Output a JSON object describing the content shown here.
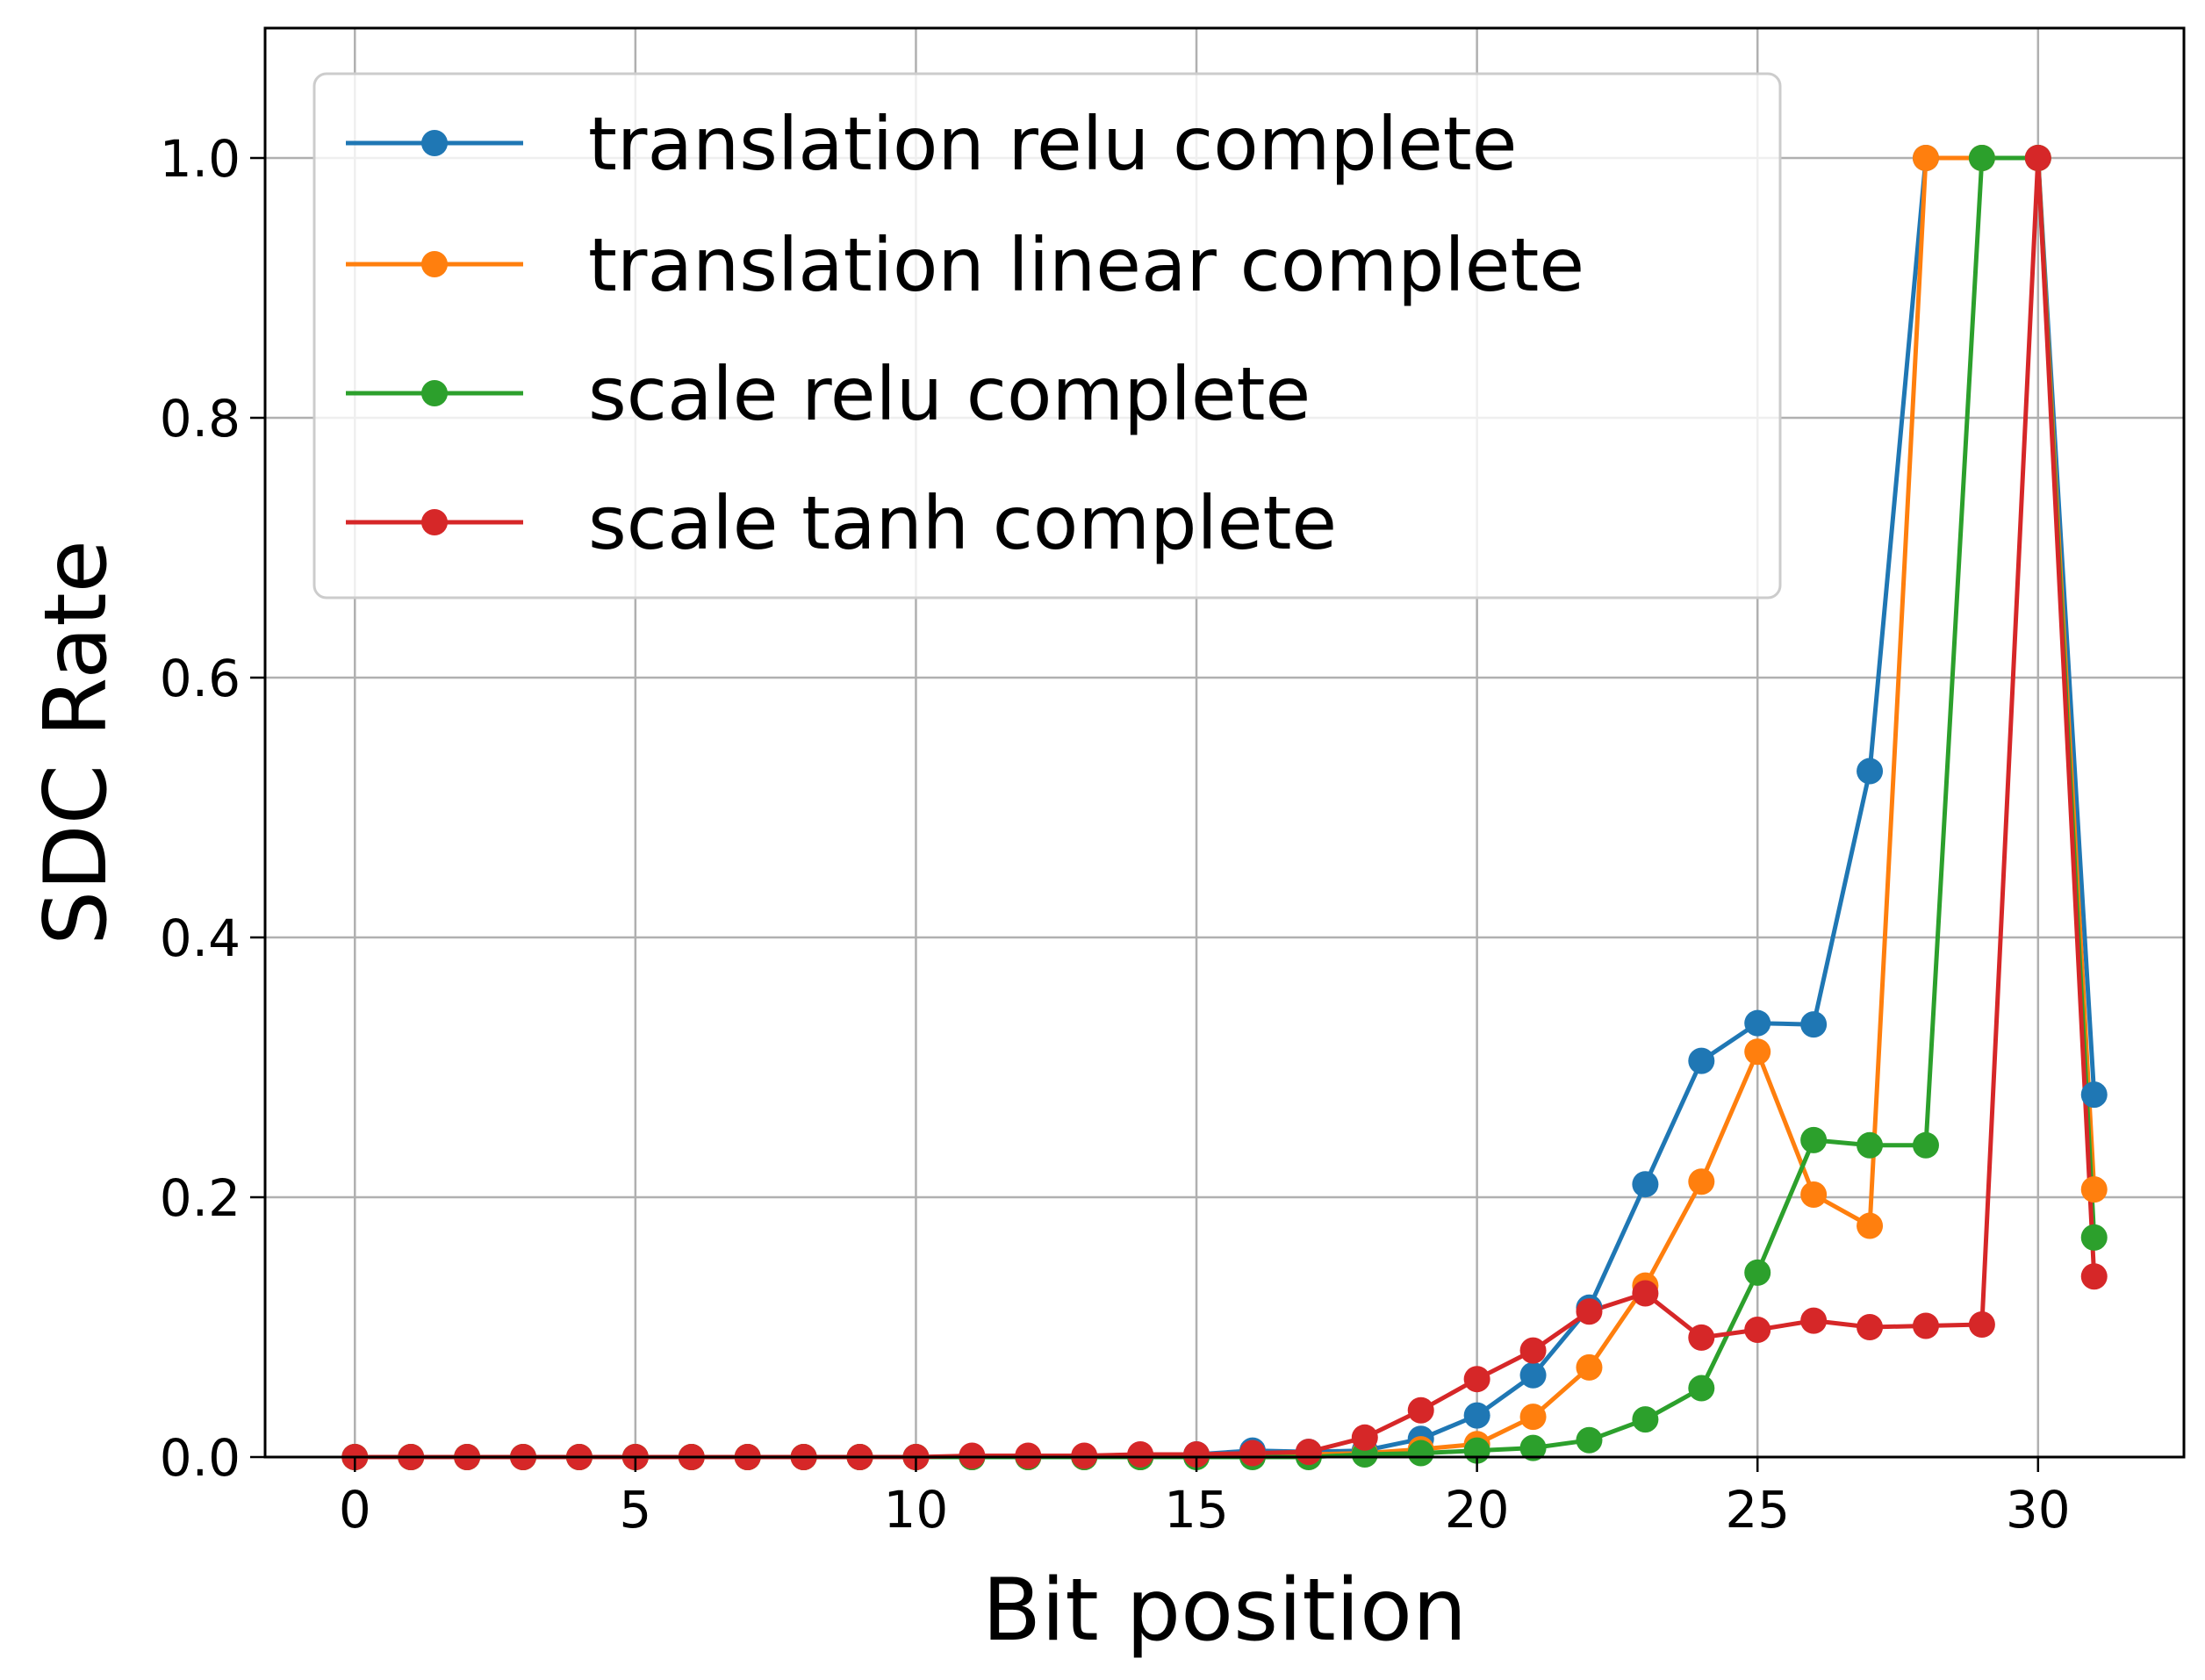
{
  "chart_data": {
    "type": "line",
    "title": "",
    "xlabel": "Bit position",
    "ylabel": "SDC Rate",
    "xlim": [
      -1.6,
      32.6
    ],
    "ylim": [
      0,
      1.1
    ],
    "xticks": [
      0,
      5,
      10,
      15,
      20,
      25,
      30
    ],
    "xtick_labels": [
      "0",
      "5",
      "10",
      "15",
      "20",
      "25",
      "30"
    ],
    "yticks": [
      0,
      0.2,
      0.4,
      0.6,
      0.8,
      1.0
    ],
    "ytick_labels": [
      "0.0",
      "0.2",
      "0.4",
      "0.6",
      "0.8",
      "1.0"
    ],
    "grid": true,
    "legend_position": "top-left",
    "x": [
      0,
      1,
      2,
      3,
      4,
      5,
      6,
      7,
      8,
      9,
      10,
      11,
      12,
      13,
      14,
      15,
      16,
      17,
      18,
      19,
      20,
      21,
      22,
      23,
      24,
      25,
      26,
      27,
      28,
      29,
      30,
      31
    ],
    "series": [
      {
        "name": "translation relu complete",
        "color": "#1f77b4",
        "values": [
          0,
          0,
          0,
          0,
          0,
          0,
          0,
          0,
          0,
          0,
          0,
          0,
          0,
          0,
          0,
          0.002,
          0.005,
          0.004,
          0.005,
          0.014,
          0.032,
          0.063,
          0.115,
          0.21,
          0.305,
          0.334,
          0.333,
          0.528,
          1.0,
          1.0,
          1.0,
          0.279
        ]
      },
      {
        "name": "translation linear complete",
        "color": "#ff7f0e",
        "values": [
          0,
          0,
          0,
          0,
          0,
          0,
          0,
          0,
          0,
          0,
          0,
          0,
          0,
          0,
          0,
          0.001,
          0.002,
          0.002,
          0.003,
          0.006,
          0.01,
          0.031,
          0.069,
          0.132,
          0.212,
          0.312,
          0.202,
          0.178,
          1.0,
          1.0,
          1.0,
          0.206
        ]
      },
      {
        "name": "scale relu complete",
        "color": "#2ca02c",
        "values": [
          0,
          0,
          0,
          0,
          0,
          0,
          0,
          0,
          0,
          0,
          0,
          0,
          0,
          0,
          0,
          0,
          0,
          0,
          0.002,
          0.003,
          0.005,
          0.007,
          0.013,
          0.029,
          0.053,
          0.142,
          0.244,
          0.24,
          0.24,
          1.0,
          1.0,
          0.169
        ]
      },
      {
        "name": "scale tanh complete",
        "color": "#d62728",
        "values": [
          0,
          0,
          0,
          0,
          0,
          0,
          0,
          0,
          0,
          0,
          0,
          0.001,
          0.001,
          0.001,
          0.002,
          0.002,
          0.003,
          0.004,
          0.015,
          0.036,
          0.06,
          0.082,
          0.112,
          0.126,
          0.092,
          0.098,
          0.105,
          0.1,
          0.101,
          0.102,
          1.0,
          0.139
        ]
      }
    ]
  }
}
